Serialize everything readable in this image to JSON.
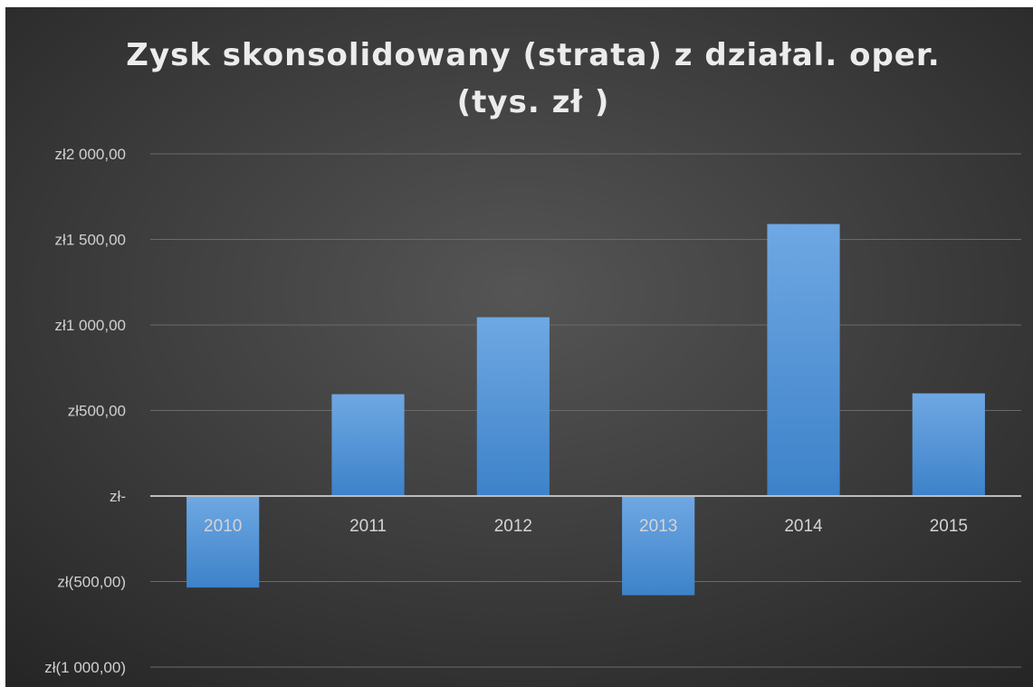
{
  "chart_data": {
    "type": "bar",
    "title_lines": [
      "Zysk skonsolidowany (strata) z działal. oper.",
      "(tys. zł )"
    ],
    "categories": [
      "2010",
      "2011",
      "2012",
      "2013",
      "2014",
      "2015"
    ],
    "values": [
      -535,
      595,
      1045,
      -580,
      1590,
      600
    ],
    "ylim": [
      -1000,
      2000
    ],
    "yticks": [
      2000,
      1500,
      1000,
      500,
      0,
      -500,
      -1000
    ],
    "ytick_labels": [
      "zł2 000,00",
      "zł1 500,00",
      "zł1 000,00",
      "zł500,00",
      "zł-",
      "zł(500,00)",
      "zł(1 000,00)"
    ],
    "grid": true,
    "legend": "none",
    "colors": {
      "background_center": "#555555",
      "background_edge": "#262626",
      "bar_top": "#6fa8e3",
      "bar_bottom": "#3d82c9",
      "gridline": "#6a6a6a",
      "axis_line": "#bdbdbd"
    }
  }
}
